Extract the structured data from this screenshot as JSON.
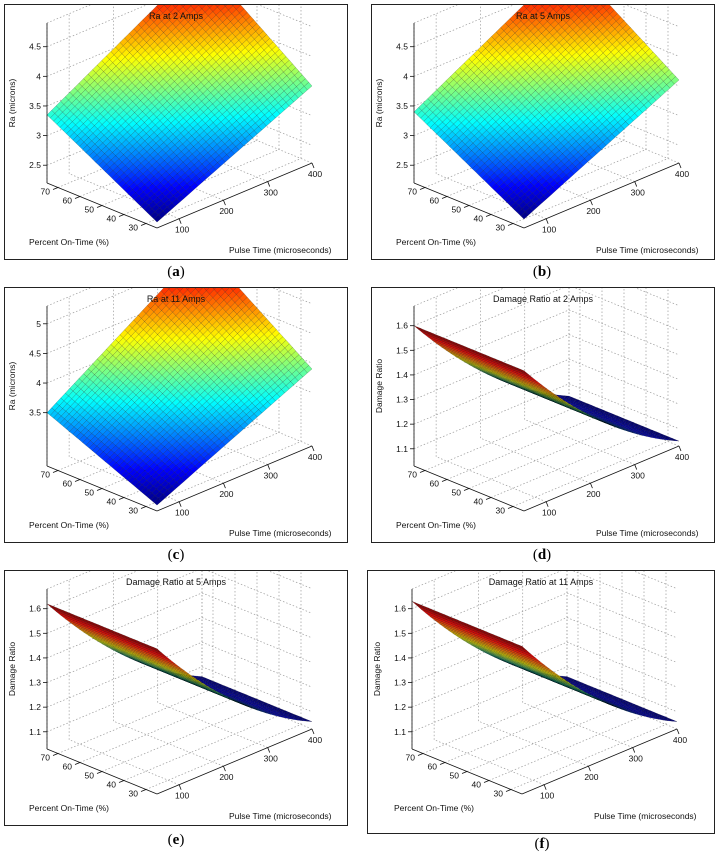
{
  "chart_data": [
    {
      "type": "surface",
      "title": "Ra at 2 Amps",
      "xlabel": "Pulse Time (microseconds)",
      "ylabel": "Percent On-Time (%)",
      "zlabel": "Ra (microns)",
      "x_ticks": [
        "100",
        "200",
        "300",
        "400"
      ],
      "y_ticks": [
        "30",
        "40",
        "50",
        "60",
        "70"
      ],
      "z_ticks": [
        "2.5",
        "3",
        "3.5",
        "4",
        "4.5"
      ],
      "xlim": [
        50,
        400
      ],
      "ylim": [
        25,
        75
      ],
      "zlim": [
        2.2,
        4.9
      ],
      "corners": {
        "x_min_y_min": 2.3,
        "x_max_y_min": 3.5,
        "x_min_y_max": 3.35,
        "x_max_y_max": 4.85
      },
      "curvature": 0.0,
      "grid": true,
      "caption": "a"
    },
    {
      "type": "surface",
      "title": "Ra at 5 Amps",
      "xlabel": "Pulse Time (microseconds)",
      "ylabel": "Percent On-Time (%)",
      "zlabel": "Ra (microns)",
      "x_ticks": [
        "100",
        "200",
        "300",
        "400"
      ],
      "y_ticks": [
        "30",
        "40",
        "50",
        "60",
        "70"
      ],
      "z_ticks": [
        "2.5",
        "3",
        "3.5",
        "4",
        "4.5"
      ],
      "xlim": [
        50,
        400
      ],
      "ylim": [
        25,
        75
      ],
      "zlim": [
        2.2,
        4.9
      ],
      "corners": {
        "x_min_y_min": 2.35,
        "x_max_y_min": 3.6,
        "x_min_y_max": 3.4,
        "x_max_y_max": 4.85
      },
      "curvature": 0.0,
      "grid": true,
      "caption": "b"
    },
    {
      "type": "surface",
      "title": "Ra at 11 Amps",
      "xlabel": "Pulse Time (microseconds)",
      "ylabel": "Percent On-Time (%)",
      "zlabel": "Ra (microns)",
      "x_ticks": [
        "100",
        "200",
        "300",
        "400"
      ],
      "y_ticks": [
        "30",
        "40",
        "50",
        "60",
        "70"
      ],
      "z_ticks": [
        "3.5",
        "4",
        "4.5",
        "5"
      ],
      "xlim": [
        50,
        400
      ],
      "ylim": [
        25,
        75
      ],
      "zlim": [
        2.6,
        5.3
      ],
      "corners": {
        "x_min_y_min": 2.7,
        "x_max_y_min": 3.9,
        "x_min_y_max": 3.5,
        "x_max_y_max": 5.2
      },
      "curvature": 0.0,
      "grid": true,
      "caption": "c"
    },
    {
      "type": "surface",
      "title": "Damage Ratio at 2 Amps",
      "xlabel": "Pulse Time (microseconds)",
      "ylabel": "Percent On-Time (%)",
      "zlabel": "Damage Ratio",
      "x_ticks": [
        "100",
        "200",
        "300",
        "400"
      ],
      "y_ticks": [
        "30",
        "40",
        "50",
        "60",
        "70"
      ],
      "z_ticks": [
        "1.1",
        "1.2",
        "1.3",
        "1.4",
        "1.5",
        "1.6"
      ],
      "xlim": [
        50,
        400
      ],
      "ylim": [
        25,
        75
      ],
      "zlim": [
        1.03,
        1.68
      ],
      "corners": {
        "x_min_y_min": 1.6,
        "x_max_y_min": 1.05,
        "x_min_y_max": 1.6,
        "x_max_y_max": 1.05
      },
      "curvature": 0.45,
      "grid": true,
      "caption": "d"
    },
    {
      "type": "surface",
      "title": "Damage Ratio at 5 Amps",
      "xlabel": "Pulse Time (microseconds)",
      "ylabel": "Percent On-Time (%)",
      "zlabel": "Damage Ratio",
      "x_ticks": [
        "100",
        "200",
        "300",
        "400"
      ],
      "y_ticks": [
        "30",
        "40",
        "50",
        "60",
        "70"
      ],
      "z_ticks": [
        "1.1",
        "1.2",
        "1.3",
        "1.4",
        "1.5",
        "1.6"
      ],
      "xlim": [
        50,
        400
      ],
      "ylim": [
        25,
        75
      ],
      "zlim": [
        1.03,
        1.68
      ],
      "corners": {
        "x_min_y_min": 1.62,
        "x_max_y_min": 1.06,
        "x_min_y_max": 1.62,
        "x_max_y_max": 1.06
      },
      "curvature": 0.45,
      "grid": true,
      "caption": "e"
    },
    {
      "type": "surface",
      "title": "Damage Ratio at 11 Amps",
      "xlabel": "Pulse Time (microseconds)",
      "ylabel": "Percent On-Time (%)",
      "zlabel": "Damage Ratio",
      "x_ticks": [
        "100",
        "200",
        "300",
        "400"
      ],
      "y_ticks": [
        "30",
        "40",
        "50",
        "60",
        "70"
      ],
      "z_ticks": [
        "1.1",
        "1.2",
        "1.3",
        "1.4",
        "1.5",
        "1.6"
      ],
      "xlim": [
        50,
        400
      ],
      "ylim": [
        25,
        75
      ],
      "zlim": [
        1.03,
        1.68
      ],
      "corners": {
        "x_min_y_min": 1.63,
        "x_max_y_min": 1.06,
        "x_min_y_max": 1.63,
        "x_max_y_max": 1.06
      },
      "curvature": 0.45,
      "grid": true,
      "caption": "f"
    }
  ]
}
